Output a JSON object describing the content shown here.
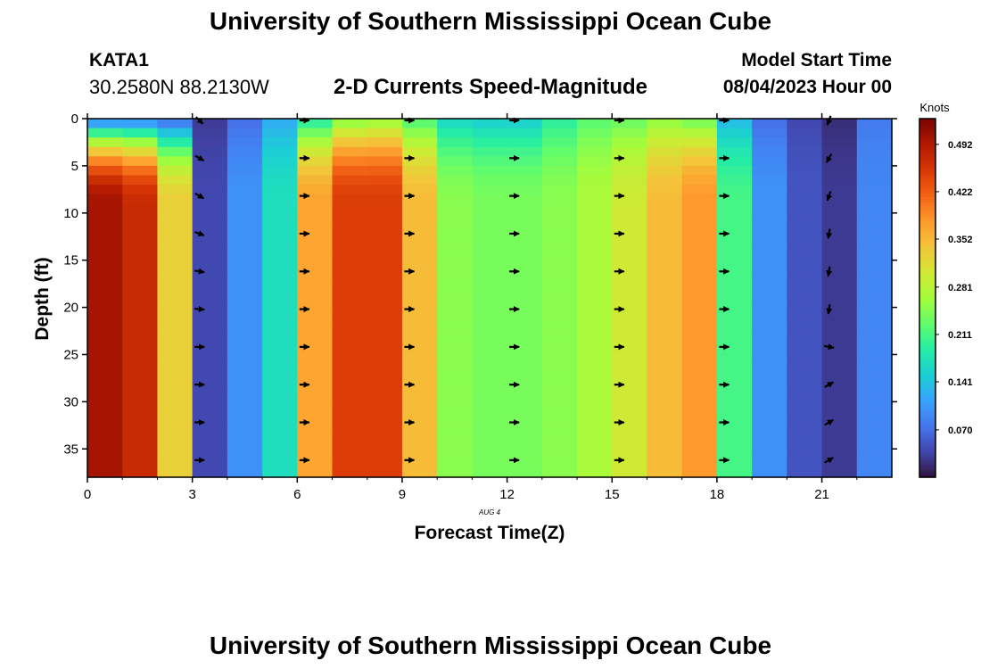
{
  "header": {
    "title": "University of Southern Mississippi Ocean Cube",
    "station": "KATA1",
    "coords": "30.2580N  88.2130W",
    "subtitle": "2-D Currents Speed-Magnitude",
    "model_start_label": "Model Start Time",
    "model_start_value": "08/04/2023 Hour 00",
    "footer_title": "University of Southern Mississippi Ocean Cube"
  },
  "chart_data": {
    "type": "heatmap",
    "xlabel": "Forecast Time(Z)",
    "ylabel": "Depth (ft)",
    "date_label": "AUG 4",
    "x_ticks": [
      0,
      3,
      6,
      9,
      12,
      15,
      18,
      21
    ],
    "y_ticks": [
      0,
      5,
      10,
      15,
      20,
      25,
      30,
      35
    ],
    "xlim": [
      0,
      23
    ],
    "ylim": [
      0,
      38
    ],
    "colorbar": {
      "label": "Knots",
      "ticks": [
        0.07,
        0.141,
        0.211,
        0.281,
        0.352,
        0.422,
        0.492
      ],
      "tick_labels": [
        "0.070",
        "0.141",
        "0.211",
        "0.281",
        "0.352",
        "0.422",
        "0.492"
      ],
      "range": [
        0.0,
        0.53
      ]
    },
    "speed_profile_knots_by_hour": {
      "hours": [
        0,
        1,
        2,
        3,
        4,
        5,
        6,
        7,
        8,
        9,
        10,
        11,
        12,
        13,
        14,
        15,
        16,
        17,
        18,
        19,
        20,
        21,
        22
      ],
      "deep_value": [
        0.5,
        0.47,
        0.33,
        0.04,
        0.1,
        0.17,
        0.37,
        0.45,
        0.45,
        0.35,
        0.25,
        0.24,
        0.24,
        0.25,
        0.27,
        0.3,
        0.35,
        0.38,
        0.21,
        0.1,
        0.05,
        0.03,
        0.09
      ],
      "surface_value": [
        0.07,
        0.07,
        0.06,
        0.03,
        0.07,
        0.12,
        0.18,
        0.24,
        0.25,
        0.21,
        0.16,
        0.15,
        0.15,
        0.19,
        0.22,
        0.23,
        0.25,
        0.23,
        0.13,
        0.07,
        0.04,
        0.02,
        0.08
      ]
    },
    "arrow_hours": [
      3,
      6,
      9,
      12,
      15,
      18,
      21
    ],
    "arrow_depths": [
      0,
      4,
      8,
      12,
      16,
      20,
      24,
      28,
      32,
      36
    ],
    "arrow_direction_deg": [
      [
        315,
        330,
        330,
        340,
        350,
        355,
        0,
        0,
        0,
        0
      ],
      [
        0,
        0,
        0,
        0,
        0,
        0,
        0,
        0,
        0,
        0
      ],
      [
        0,
        0,
        0,
        0,
        0,
        0,
        0,
        0,
        0,
        0
      ],
      [
        0,
        0,
        0,
        0,
        0,
        0,
        0,
        0,
        0,
        0
      ],
      [
        0,
        0,
        0,
        0,
        0,
        0,
        0,
        0,
        0,
        0
      ],
      [
        0,
        0,
        0,
        0,
        0,
        0,
        0,
        0,
        0,
        0
      ],
      [
        250,
        240,
        250,
        260,
        260,
        260,
        350,
        30,
        30,
        30
      ]
    ],
    "colors": {
      "scale": [
        "#30123b",
        "#4145ab",
        "#4675ed",
        "#39a2fc",
        "#1bcfd4",
        "#24eca6",
        "#61fc6c",
        "#a4fc3b",
        "#d1e834",
        "#f3c63a",
        "#fe9b2d",
        "#f36315",
        "#d93806",
        "#b11901",
        "#7a0402"
      ]
    }
  }
}
